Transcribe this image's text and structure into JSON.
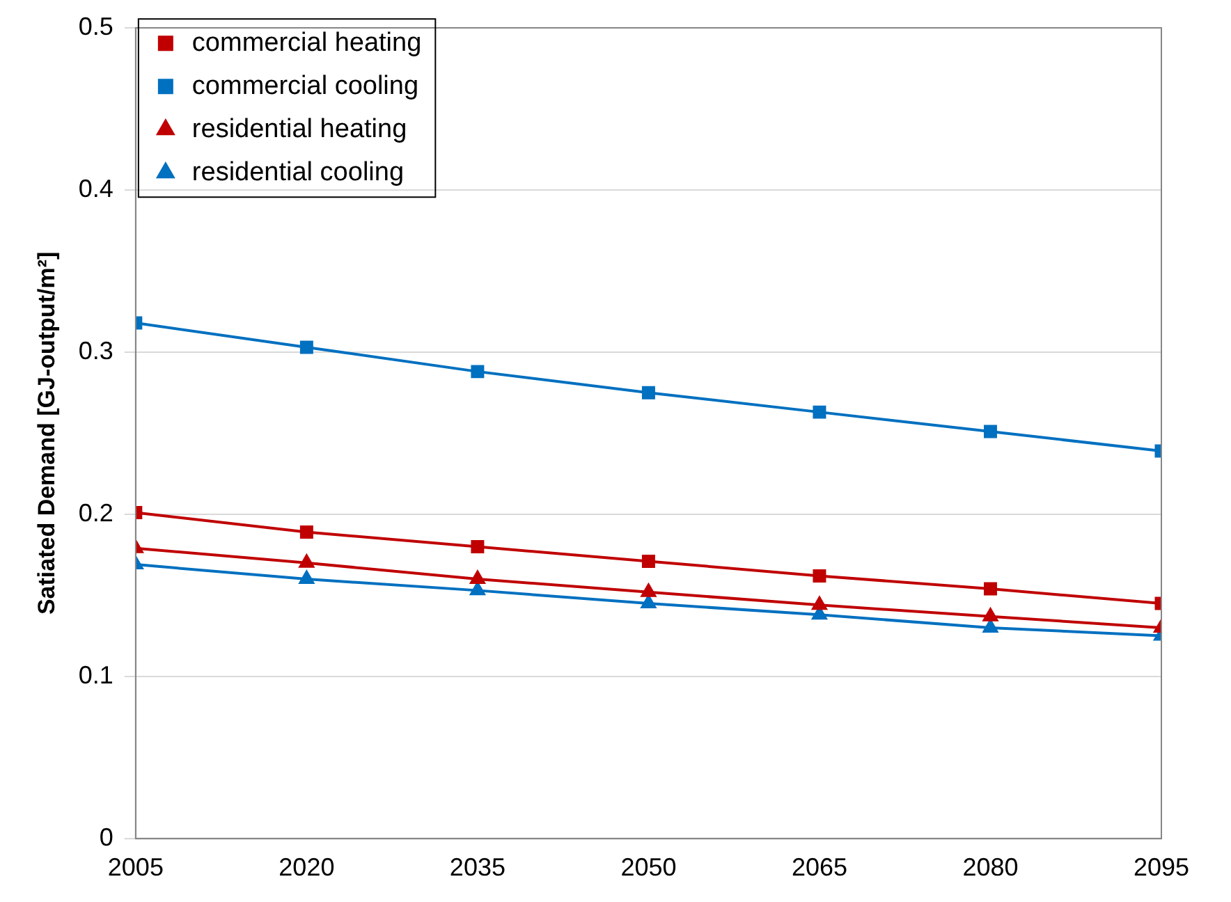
{
  "chart_data": {
    "type": "line",
    "ylabel": "Satiated Demand [GJ-output/m²]",
    "x": [
      2005,
      2020,
      2035,
      2050,
      2065,
      2080,
      2095
    ],
    "xlim": [
      2005,
      2095
    ],
    "xticks": [
      2005,
      2020,
      2035,
      2050,
      2065,
      2080,
      2095
    ],
    "ylim": [
      0,
      0.5
    ],
    "yticks": [
      0,
      0.1,
      0.2,
      0.3,
      0.4,
      0.5
    ],
    "grid": "y",
    "legend": "top left",
    "line_style": "solid",
    "series": [
      {
        "name": "commercial heating",
        "color": "#c00000",
        "marker": "square",
        "values": [
          0.201,
          0.189,
          0.18,
          0.171,
          0.162,
          0.154,
          0.145
        ]
      },
      {
        "name": "commercial cooling",
        "color": "#0070c0",
        "marker": "square",
        "values": [
          0.318,
          0.303,
          0.288,
          0.275,
          0.263,
          0.251,
          0.239
        ]
      },
      {
        "name": "residential heating",
        "color": "#c00000",
        "marker": "triangle",
        "values": [
          0.179,
          0.17,
          0.16,
          0.152,
          0.144,
          0.137,
          0.13
        ]
      },
      {
        "name": "residential cooling",
        "color": "#0070c0",
        "marker": "triangle",
        "values": [
          0.169,
          0.16,
          0.153,
          0.145,
          0.138,
          0.13,
          0.125
        ]
      }
    ]
  }
}
